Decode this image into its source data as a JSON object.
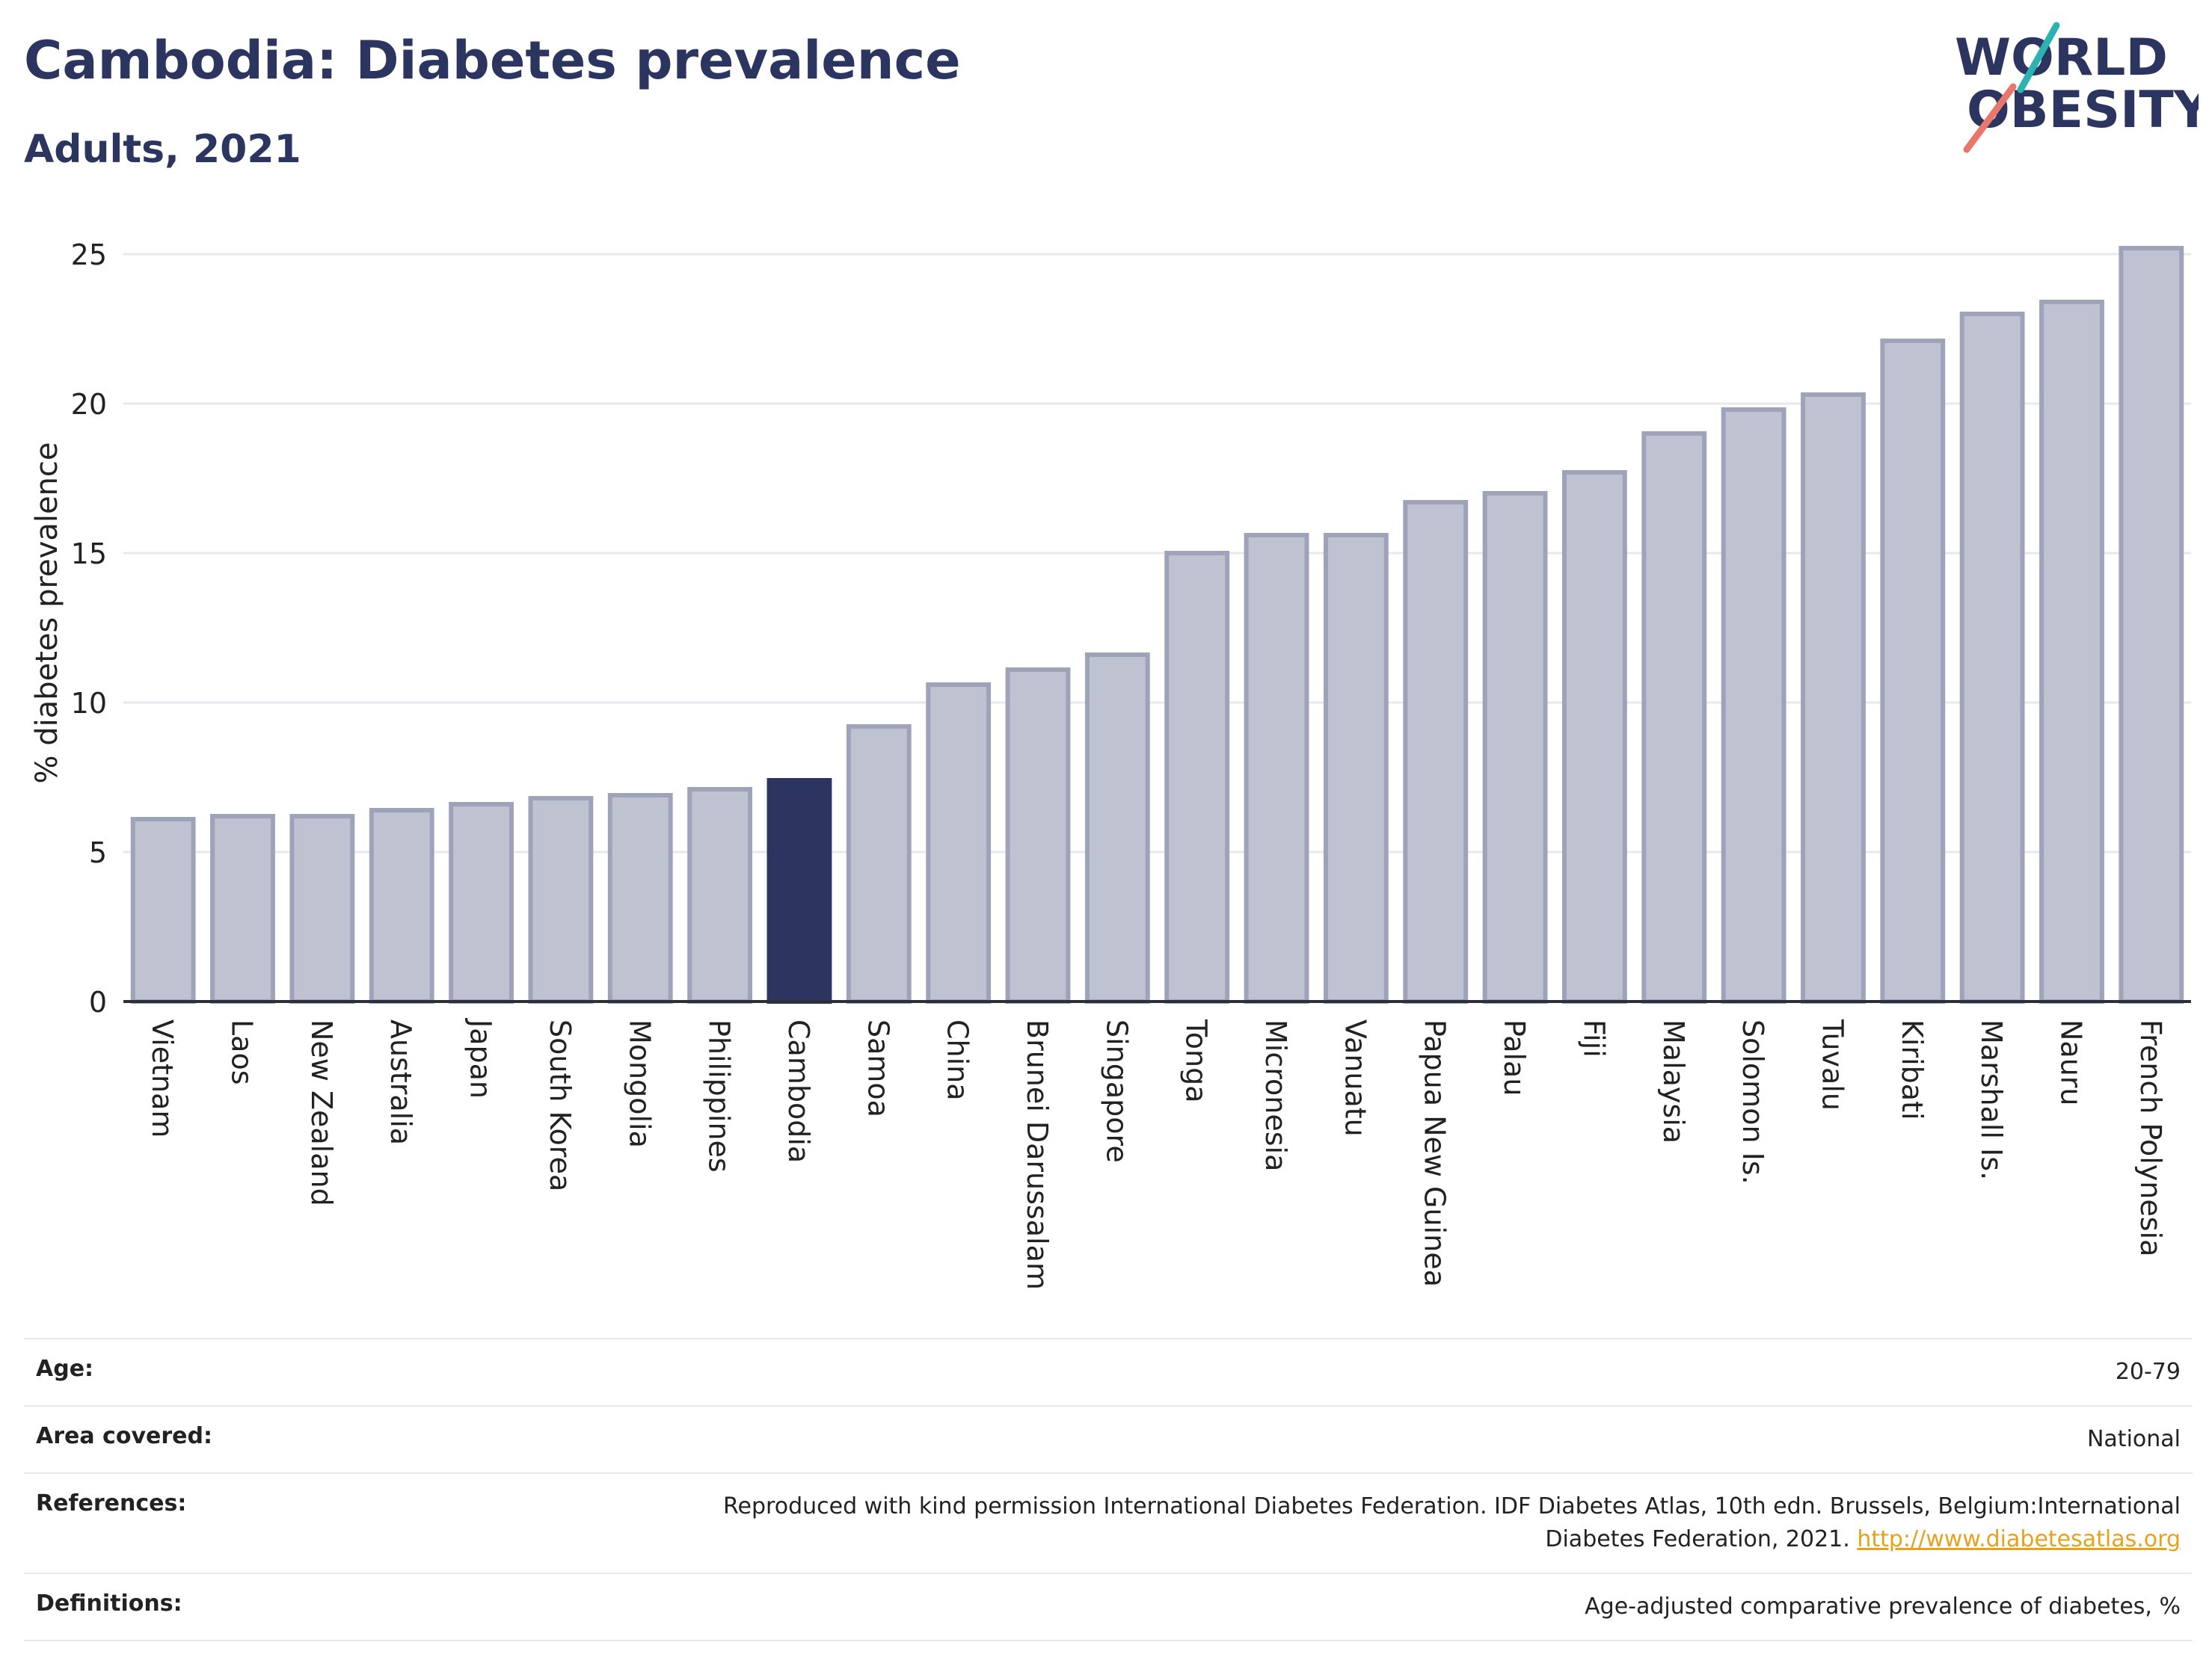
{
  "title": "Cambodia: Diabetes prevalence",
  "subtitle": "Adults, 2021",
  "logo": {
    "line1": "WORLD",
    "line2": "OBESITY"
  },
  "colors": {
    "title": "#2b3560",
    "bar": "#bfc2d0",
    "bar_stroke": "#9ea3ba",
    "highlight": "#2b3560",
    "grid": "#e6e8ee",
    "link": "#e8a21a"
  },
  "chart_data": {
    "type": "bar",
    "ylabel": "% diabetes prevalence",
    "ylim": [
      0,
      26
    ],
    "yticks": [
      0,
      5,
      10,
      15,
      20,
      25
    ],
    "grid": true,
    "highlight": "Cambodia",
    "categories": [
      "Vietnam",
      "Laos",
      "New Zealand",
      "Australia",
      "Japan",
      "South Korea",
      "Mongolia",
      "Philippines",
      "Cambodia",
      "Samoa",
      "China",
      "Brunei Darussalam",
      "Singapore",
      "Tonga",
      "Micronesia",
      "Vanuatu",
      "Papua New Guinea",
      "Palau",
      "Fiji",
      "Malaysia",
      "Solomon Is.",
      "Tuvalu",
      "Kiribati",
      "Marshall Is.",
      "Nauru",
      "French Polynesia"
    ],
    "values": [
      6.1,
      6.2,
      6.2,
      6.4,
      6.6,
      6.8,
      6.9,
      7.1,
      7.4,
      9.2,
      10.6,
      11.1,
      11.6,
      15.0,
      15.6,
      15.6,
      16.7,
      17.0,
      17.7,
      19.0,
      19.8,
      20.3,
      22.1,
      23.0,
      23.4,
      25.2
    ]
  },
  "meta": {
    "age_label": "Age:",
    "age_value": "20-79",
    "area_label": "Area covered:",
    "area_value": "National",
    "references_label": "References:",
    "references_line1": "Reproduced with kind permission International Diabetes Federation.  IDF Diabetes Atlas, 10th edn. Brussels, Belgium:International",
    "references_line2": "Diabetes Federation, 2021.",
    "references_link": "http://www.diabetesatlas.org",
    "definitions_label": "Definitions:",
    "definitions_value": "Age-adjusted comparative prevalence of diabetes, %"
  }
}
